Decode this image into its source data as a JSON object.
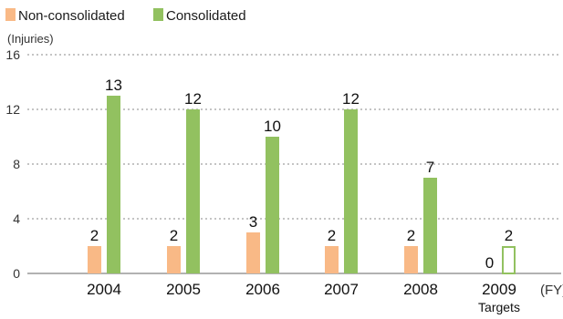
{
  "chart_data": {
    "type": "bar",
    "categories": [
      "2004",
      "2005",
      "2006",
      "2007",
      "2008",
      "2009"
    ],
    "category_sublabels": [
      "",
      "",
      "",
      "",
      "",
      "Targets"
    ],
    "series": [
      {
        "name": "Non-consolidated",
        "values": [
          2,
          2,
          3,
          2,
          2,
          0
        ],
        "color": "#f9b986",
        "style": [
          "filled",
          "filled",
          "filled",
          "filled",
          "filled",
          "filled"
        ]
      },
      {
        "name": "Consolidated",
        "values": [
          13,
          12,
          10,
          12,
          7,
          2
        ],
        "color": "#92c160",
        "style": [
          "filled",
          "filled",
          "filled",
          "filled",
          "filled",
          "outline"
        ]
      }
    ],
    "ylabel": "(Injuries)",
    "xlabel": "(FY)",
    "ylim": [
      0,
      16
    ],
    "yticks": [
      0,
      4,
      8,
      12,
      16
    ],
    "grid": true,
    "legend": "top-left"
  }
}
